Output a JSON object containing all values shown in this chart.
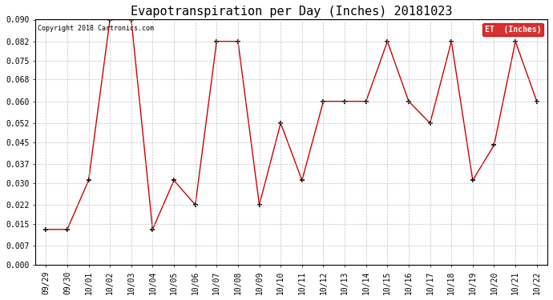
{
  "title": "Evapotranspiration per Day (Inches) 20181023",
  "copyright_text": "Copyright 2018 Cartronics.com",
  "legend_label": "ET  (Inches)",
  "x_labels": [
    "09/29",
    "09/30",
    "10/01",
    "10/02",
    "10/03",
    "10/04",
    "10/05",
    "10/06",
    "10/07",
    "10/08",
    "10/09",
    "10/10",
    "10/11",
    "10/12",
    "10/13",
    "10/14",
    "10/15",
    "10/16",
    "10/17",
    "10/18",
    "10/19",
    "10/20",
    "10/21",
    "10/22"
  ],
  "y_values": [
    0.013,
    0.013,
    0.031,
    0.09,
    0.09,
    0.013,
    0.031,
    0.022,
    0.082,
    0.082,
    0.022,
    0.052,
    0.031,
    0.06,
    0.06,
    0.06,
    0.082,
    0.06,
    0.052,
    0.082,
    0.031,
    0.044,
    0.082,
    0.06
  ],
  "ylim": [
    0.0,
    0.09
  ],
  "yticks": [
    0.0,
    0.007,
    0.015,
    0.022,
    0.03,
    0.037,
    0.045,
    0.052,
    0.06,
    0.068,
    0.075,
    0.082,
    0.09
  ],
  "line_color": "#cc0000",
  "marker_color": "black",
  "marker": "+",
  "background_color": "#ffffff",
  "grid_color": "#bbbbbb",
  "title_fontsize": 11,
  "tick_fontsize": 7,
  "legend_bg": "#cc0000",
  "legend_fg": "#ffffff"
}
